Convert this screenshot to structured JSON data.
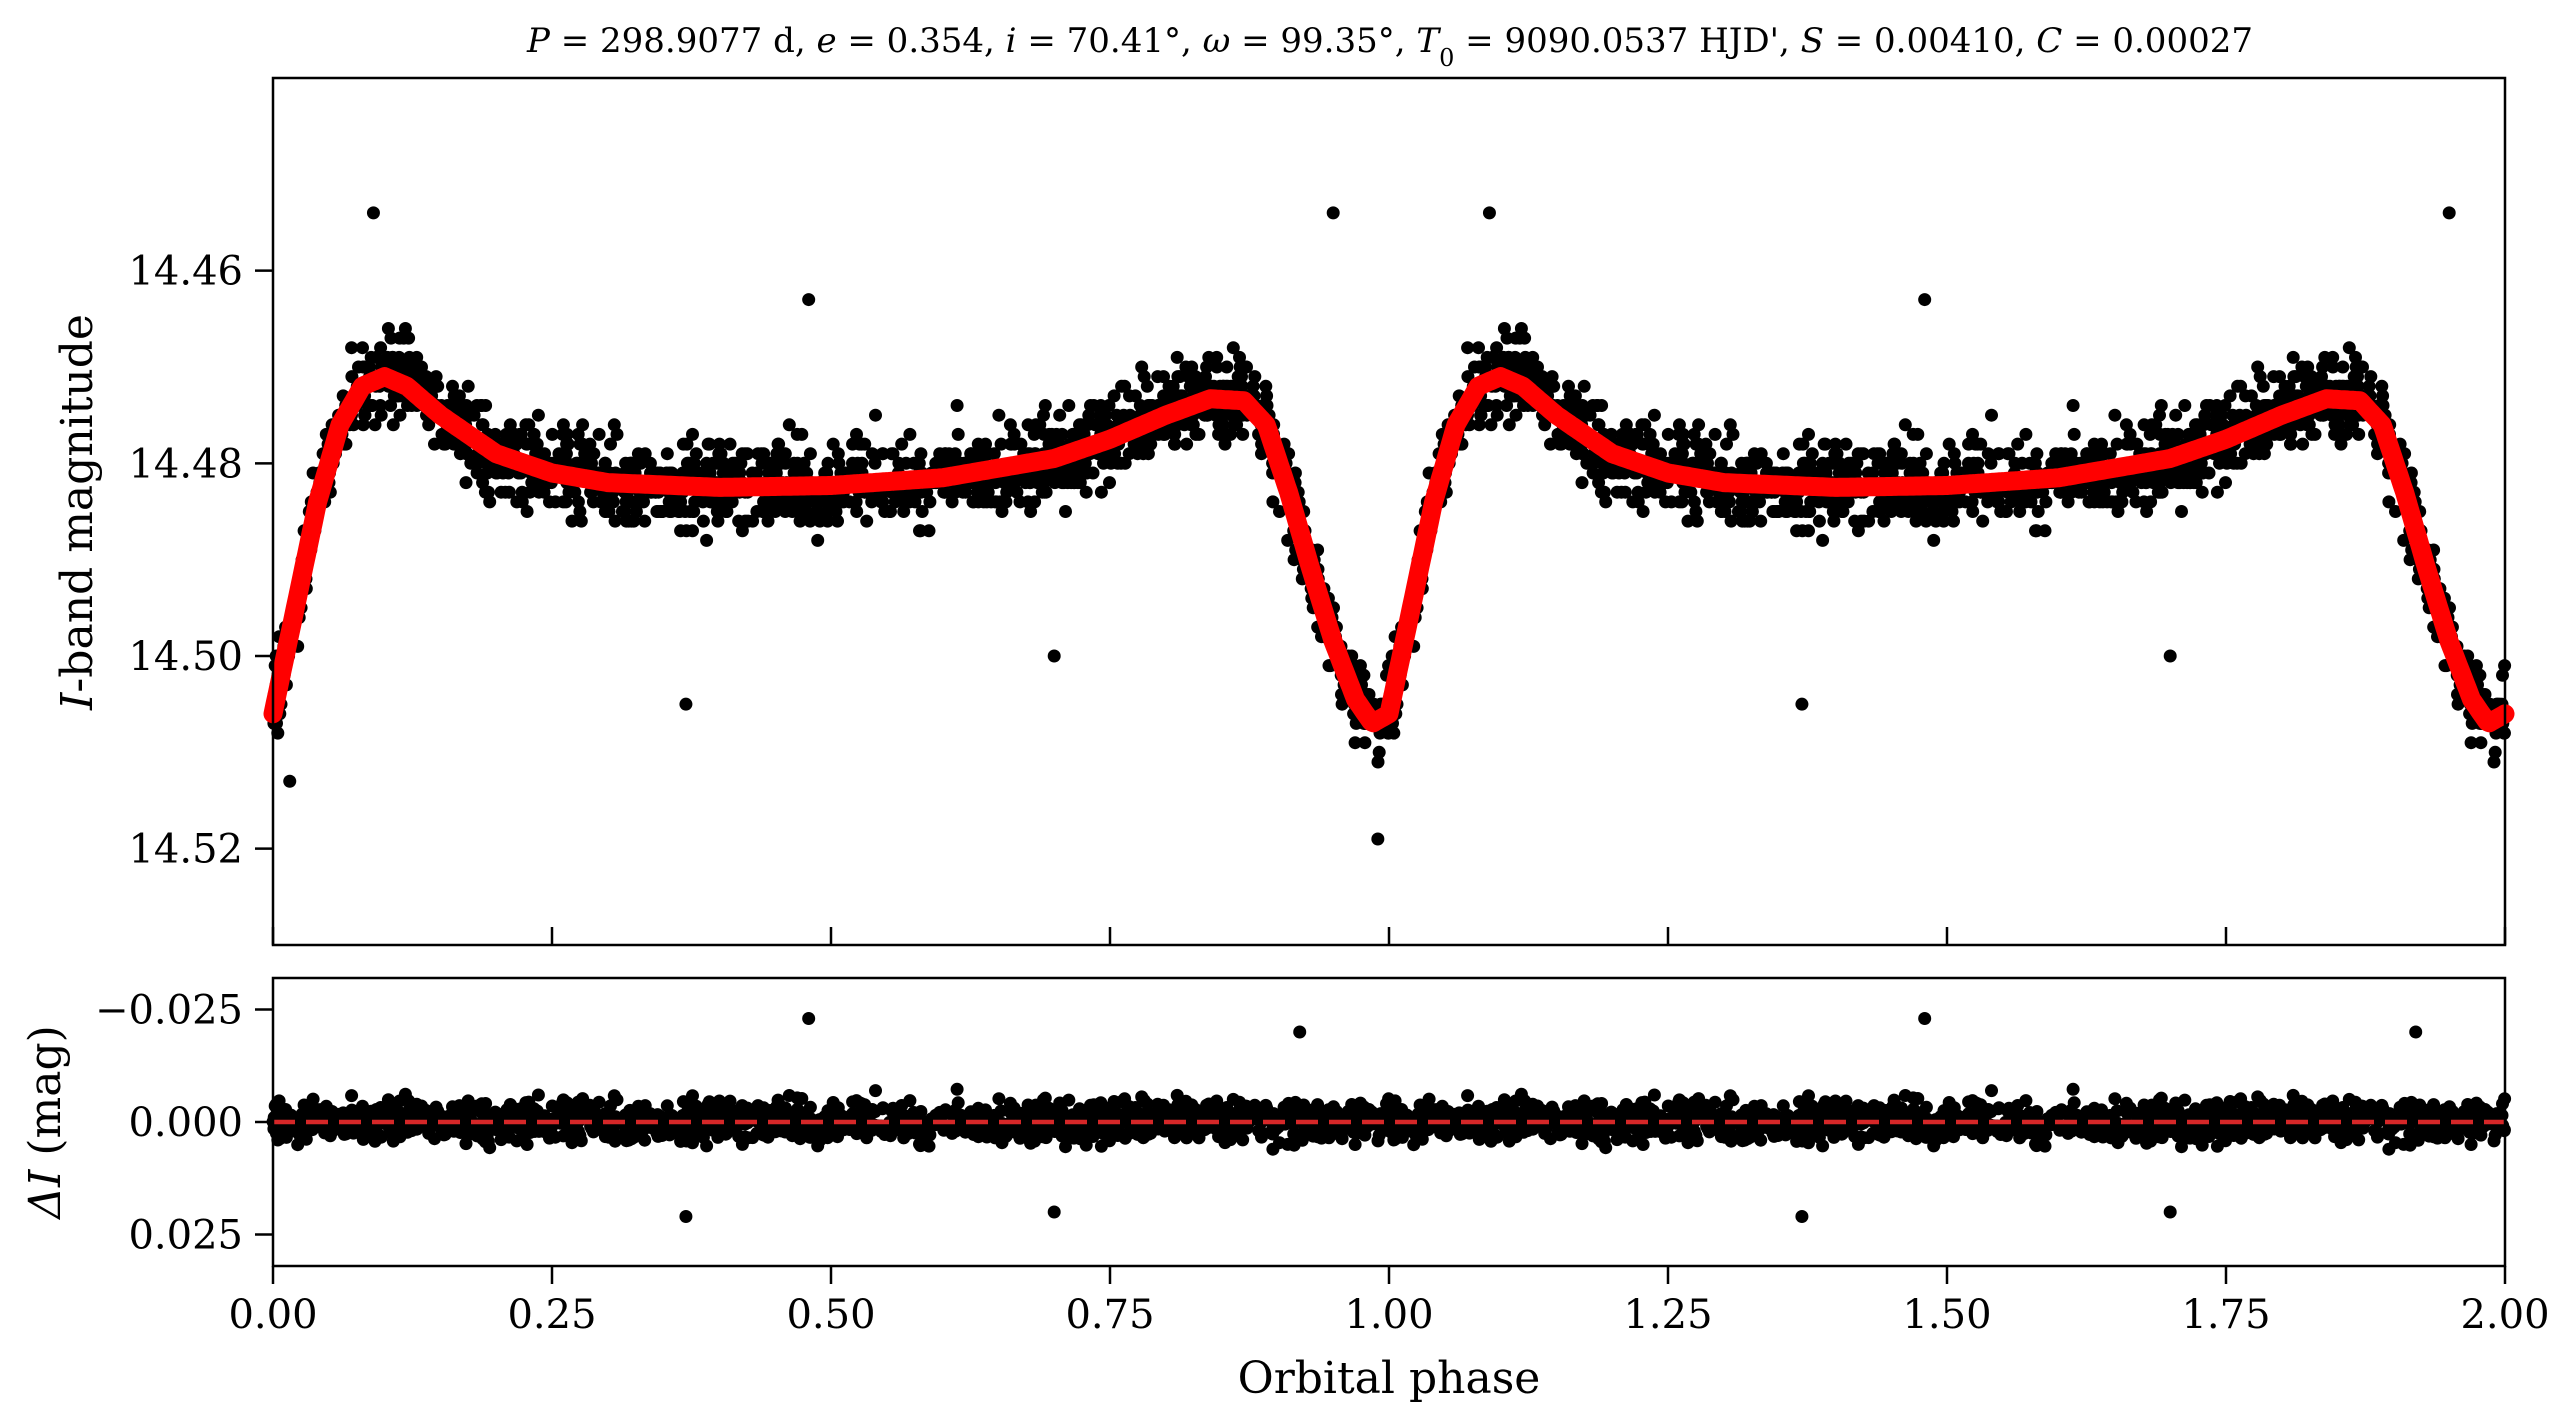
{
  "title_parts": [
    {
      "t": "P",
      "it": true
    },
    {
      "t": " = 298.9077 d, "
    },
    {
      "t": "e",
      "it": true
    },
    {
      "t": " = 0.354, "
    },
    {
      "t": "i",
      "it": true
    },
    {
      "t": " = 70.41°, "
    },
    {
      "t": "ω",
      "it": true
    },
    {
      "t": " = 99.35°, "
    },
    {
      "t": "T",
      "it": true
    },
    {
      "t": "0",
      "sub": true
    },
    {
      "t": " = 9090.0537 HJD', "
    },
    {
      "t": "S",
      "it": true
    },
    {
      "t": " = 0.00410, "
    },
    {
      "t": "C",
      "it": true
    },
    {
      "t": " = 0.00027"
    }
  ],
  "top_ylabel": [
    {
      "t": "I",
      "it": true
    },
    {
      "t": "-band magnitude"
    }
  ],
  "bottom_ylabel": [
    {
      "t": "ΔI",
      "it": true
    },
    {
      "t": " (mag)"
    }
  ],
  "xlabel": "Orbital phase",
  "colors": {
    "points": "#000000",
    "model": "#ff0000",
    "zero_line": "#d62728"
  },
  "chart_data": [
    {
      "type": "scatter",
      "panel": "light-curve",
      "xlim": [
        0.0,
        2.0
      ],
      "ylim": [
        14.53,
        14.44
      ],
      "y_inverted": true,
      "xticks": [
        0.0,
        0.25,
        0.5,
        0.75,
        1.0,
        1.25,
        1.5,
        1.75,
        2.0
      ],
      "yticks": [
        14.46,
        14.48,
        14.5,
        14.52
      ],
      "ytick_labels": [
        "14.46",
        "14.48",
        "14.50",
        "14.52"
      ],
      "model_curve": {
        "x": [
          0.0,
          0.02,
          0.04,
          0.06,
          0.08,
          0.1,
          0.12,
          0.15,
          0.2,
          0.25,
          0.3,
          0.4,
          0.5,
          0.6,
          0.7,
          0.75,
          0.8,
          0.84,
          0.87,
          0.89,
          0.91,
          0.93,
          0.95,
          0.97,
          0.985,
          1.0,
          1.02,
          1.04,
          1.06,
          1.08,
          1.1,
          1.12,
          1.15,
          1.2,
          1.25,
          1.3,
          1.4,
          1.5,
          1.6,
          1.7,
          1.75,
          1.8,
          1.84,
          1.87,
          1.89,
          1.91,
          1.93,
          1.95,
          1.97,
          1.985,
          2.0
        ],
        "y": [
          14.506,
          14.495,
          14.484,
          14.476,
          14.472,
          14.471,
          14.472,
          14.475,
          14.479,
          14.481,
          14.482,
          14.4825,
          14.4823,
          14.4815,
          14.4795,
          14.4775,
          14.475,
          14.4733,
          14.4735,
          14.476,
          14.483,
          14.491,
          14.4985,
          14.5045,
          14.507,
          14.506,
          14.495,
          14.484,
          14.476,
          14.472,
          14.471,
          14.472,
          14.475,
          14.479,
          14.481,
          14.482,
          14.4825,
          14.4823,
          14.4815,
          14.4795,
          14.4775,
          14.475,
          14.4733,
          14.4735,
          14.476,
          14.483,
          14.491,
          14.4985,
          14.5045,
          14.507,
          14.506
        ]
      },
      "points_note": "dense scatter following the model curve with approx. 0.005 mag scatter",
      "outliers": [
        {
          "x": 0.09,
          "y": 14.454
        },
        {
          "x": 0.95,
          "y": 14.454
        },
        {
          "x": 1.09,
          "y": 14.454
        },
        {
          "x": 1.95,
          "y": 14.454
        },
        {
          "x": 0.48,
          "y": 14.463
        },
        {
          "x": 1.48,
          "y": 14.463
        },
        {
          "x": 0.37,
          "y": 14.505
        },
        {
          "x": 1.37,
          "y": 14.505
        },
        {
          "x": 0.7,
          "y": 14.5
        },
        {
          "x": 1.7,
          "y": 14.5
        },
        {
          "x": 0.99,
          "y": 14.519
        },
        {
          "x": 0.015,
          "y": 14.513
        }
      ]
    },
    {
      "type": "scatter",
      "panel": "residuals",
      "xlim": [
        0.0,
        2.0
      ],
      "ylim": [
        0.032,
        -0.032
      ],
      "y_inverted": true,
      "xticks": [
        0.0,
        0.25,
        0.5,
        0.75,
        1.0,
        1.25,
        1.5,
        1.75,
        2.0
      ],
      "xtick_labels": [
        "0.00",
        "0.25",
        "0.50",
        "0.75",
        "1.00",
        "1.25",
        "1.50",
        "1.75",
        "2.00"
      ],
      "yticks": [
        -0.025,
        0.0,
        0.025
      ],
      "ytick_labels": [
        "−0.025",
        "0.000",
        "0.025"
      ],
      "zero_line": 0.0,
      "points_note": "residuals scattered around zero with approx. 0.005 mag scatter",
      "outliers": [
        {
          "x": 0.48,
          "y": -0.023
        },
        {
          "x": 1.48,
          "y": -0.023
        },
        {
          "x": 0.37,
          "y": 0.021
        },
        {
          "x": 1.37,
          "y": 0.021
        },
        {
          "x": 0.7,
          "y": 0.02
        },
        {
          "x": 1.7,
          "y": 0.02
        },
        {
          "x": 0.92,
          "y": -0.02
        },
        {
          "x": 1.92,
          "y": -0.02
        }
      ]
    }
  ]
}
